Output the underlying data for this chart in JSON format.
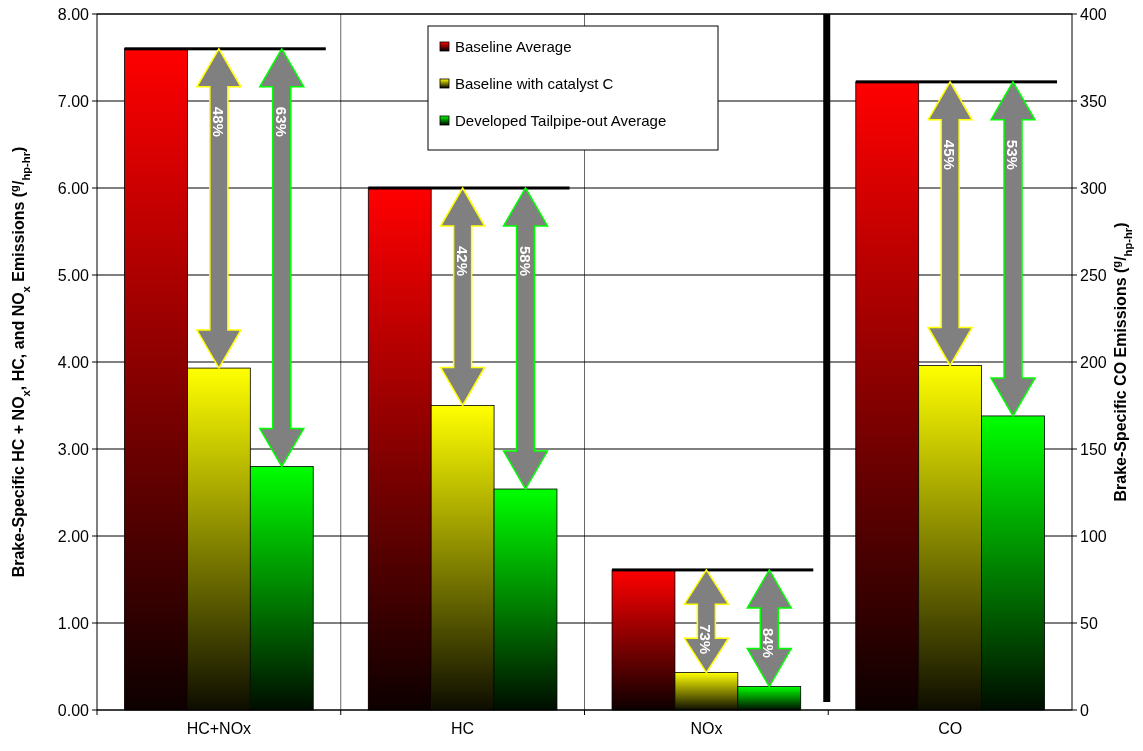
{
  "chart_data": {
    "type": "bar",
    "categories": [
      "HC+NOx",
      "HC",
      "NOx",
      "CO"
    ],
    "ylabel": "Brake-Specific HC + NO$_{x}$, HC, and NO$_{x}$ Emissions ($^{g}$/$_{hp-hr}$)",
    "y2label": "Brake-Specific CO Emissions ($^{g}$/$_{hp-hr}$)",
    "series": [
      {
        "name": "Baseline Average",
        "color": "#ff0000",
        "values": [
          7.6,
          6.0,
          1.61,
          null
        ]
      },
      {
        "name": "Baseline with catalyst C",
        "color": "#ffff00",
        "values": [
          3.93,
          3.5,
          0.43,
          null
        ]
      },
      {
        "name": "Developed Tailpipe-out Average",
        "color": "#00ff00",
        "values": [
          2.8,
          2.54,
          0.27,
          null
        ]
      },
      {
        "color": "#ff0000",
        "axis": "y2",
        "values": [
          null,
          null,
          null,
          361
        ]
      },
      {
        "color": "#ffff00",
        "axis": "y2",
        "values": [
          null,
          null,
          null,
          198
        ]
      },
      {
        "color": "#00ff00",
        "axis": "y2",
        "values": [
          null,
          null,
          null,
          169
        ]
      }
    ],
    "ylim": [
      0,
      8
    ],
    "yticks": [
      {
        "value": 0,
        "label": "0.00"
      },
      {
        "value": 1,
        "label": "1.00"
      },
      {
        "value": 2,
        "label": "2.00"
      },
      {
        "value": 3,
        "label": "3.00"
      },
      {
        "value": 4,
        "label": "4.00"
      },
      {
        "value": 5,
        "label": "5.00"
      },
      {
        "value": 6,
        "label": "6.00"
      },
      {
        "value": 7,
        "label": "7.00"
      },
      {
        "value": 8,
        "label": "8.00"
      }
    ],
    "y2lim": [
      0,
      400
    ],
    "y2ticks": [
      0,
      50,
      100,
      150,
      200,
      250,
      300,
      350,
      400
    ],
    "annotations": [
      "48%",
      "63%",
      "42%",
      "58%",
      "73%",
      "84%",
      "45%",
      "53%"
    ],
    "grid": "y",
    "legend": "top"
  }
}
